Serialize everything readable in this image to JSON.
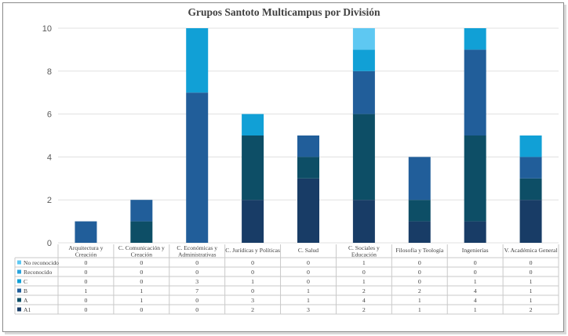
{
  "chart_data": {
    "type": "bar",
    "stacked": true,
    "title": "Grupos Santoto Multicampus por División",
    "ylim": [
      0,
      10
    ],
    "yticks": [
      "0",
      "2",
      "4",
      "6",
      "8",
      "10"
    ],
    "grid": true,
    "legend": "data-table",
    "categories": [
      [
        "Arquitectura y",
        "Creación"
      ],
      [
        "C. Comunicación y",
        "Creación"
      ],
      [
        "C. Económicas y",
        "Administrativas"
      ],
      [
        "C. Jurídicas y Políticas"
      ],
      [
        "C. Salud"
      ],
      [
        "C. Sociales y",
        "Educación"
      ],
      [
        "Filosofía y Teología"
      ],
      [
        "Ingenierías"
      ],
      [
        "V. Académica General"
      ]
    ],
    "series": [
      {
        "name": "No reconocido",
        "color": "#5ec8f2",
        "values": [
          0,
          0,
          0,
          0,
          0,
          1,
          0,
          0,
          0
        ]
      },
      {
        "name": "Reconocido",
        "color": "#2aa3dc",
        "values": [
          0,
          0,
          0,
          0,
          0,
          0,
          0,
          0,
          0
        ]
      },
      {
        "name": "C",
        "color": "#11a0d6",
        "values": [
          0,
          0,
          3,
          1,
          0,
          1,
          0,
          1,
          1
        ]
      },
      {
        "name": "B",
        "color": "#215e9a",
        "values": [
          1,
          1,
          7,
          0,
          1,
          2,
          2,
          4,
          1
        ]
      },
      {
        "name": "A",
        "color": "#0d4e66",
        "values": [
          0,
          1,
          0,
          3,
          1,
          4,
          1,
          4,
          1
        ]
      },
      {
        "name": "A1",
        "color": "#183c66",
        "values": [
          0,
          0,
          0,
          2,
          3,
          2,
          1,
          1,
          2
        ]
      }
    ]
  }
}
